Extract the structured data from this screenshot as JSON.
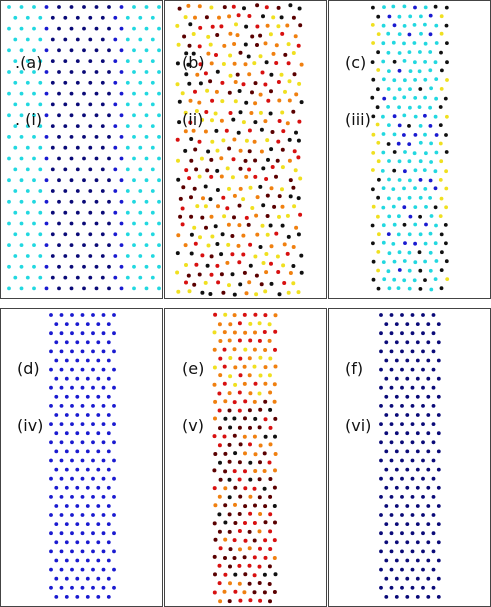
{
  "panels": [
    {
      "label1": ".(a)",
      "label2": ". (i)",
      "style": "a"
    },
    {
      "label1": "(b)",
      "label2": "(ii)",
      "style": "b"
    },
    {
      "label1": "(c)",
      "label2": "(iii)",
      "style": "c"
    },
    {
      "label1": "(d)",
      "label2": "(iv)",
      "style": "d"
    },
    {
      "label1": "(e)",
      "label2": "(v)",
      "style": "e"
    },
    {
      "label1": "(f)",
      "label2": "(vi)",
      "style": "f"
    }
  ],
  "colors": {
    "navy": "#0a0a78",
    "blue": "#1a1ad0",
    "cyan": "#22d8e0",
    "yellow": "#f0e020",
    "orange": "#f08010",
    "red": "#d81010",
    "darkred": "#5a0000",
    "black": "#101010"
  }
}
